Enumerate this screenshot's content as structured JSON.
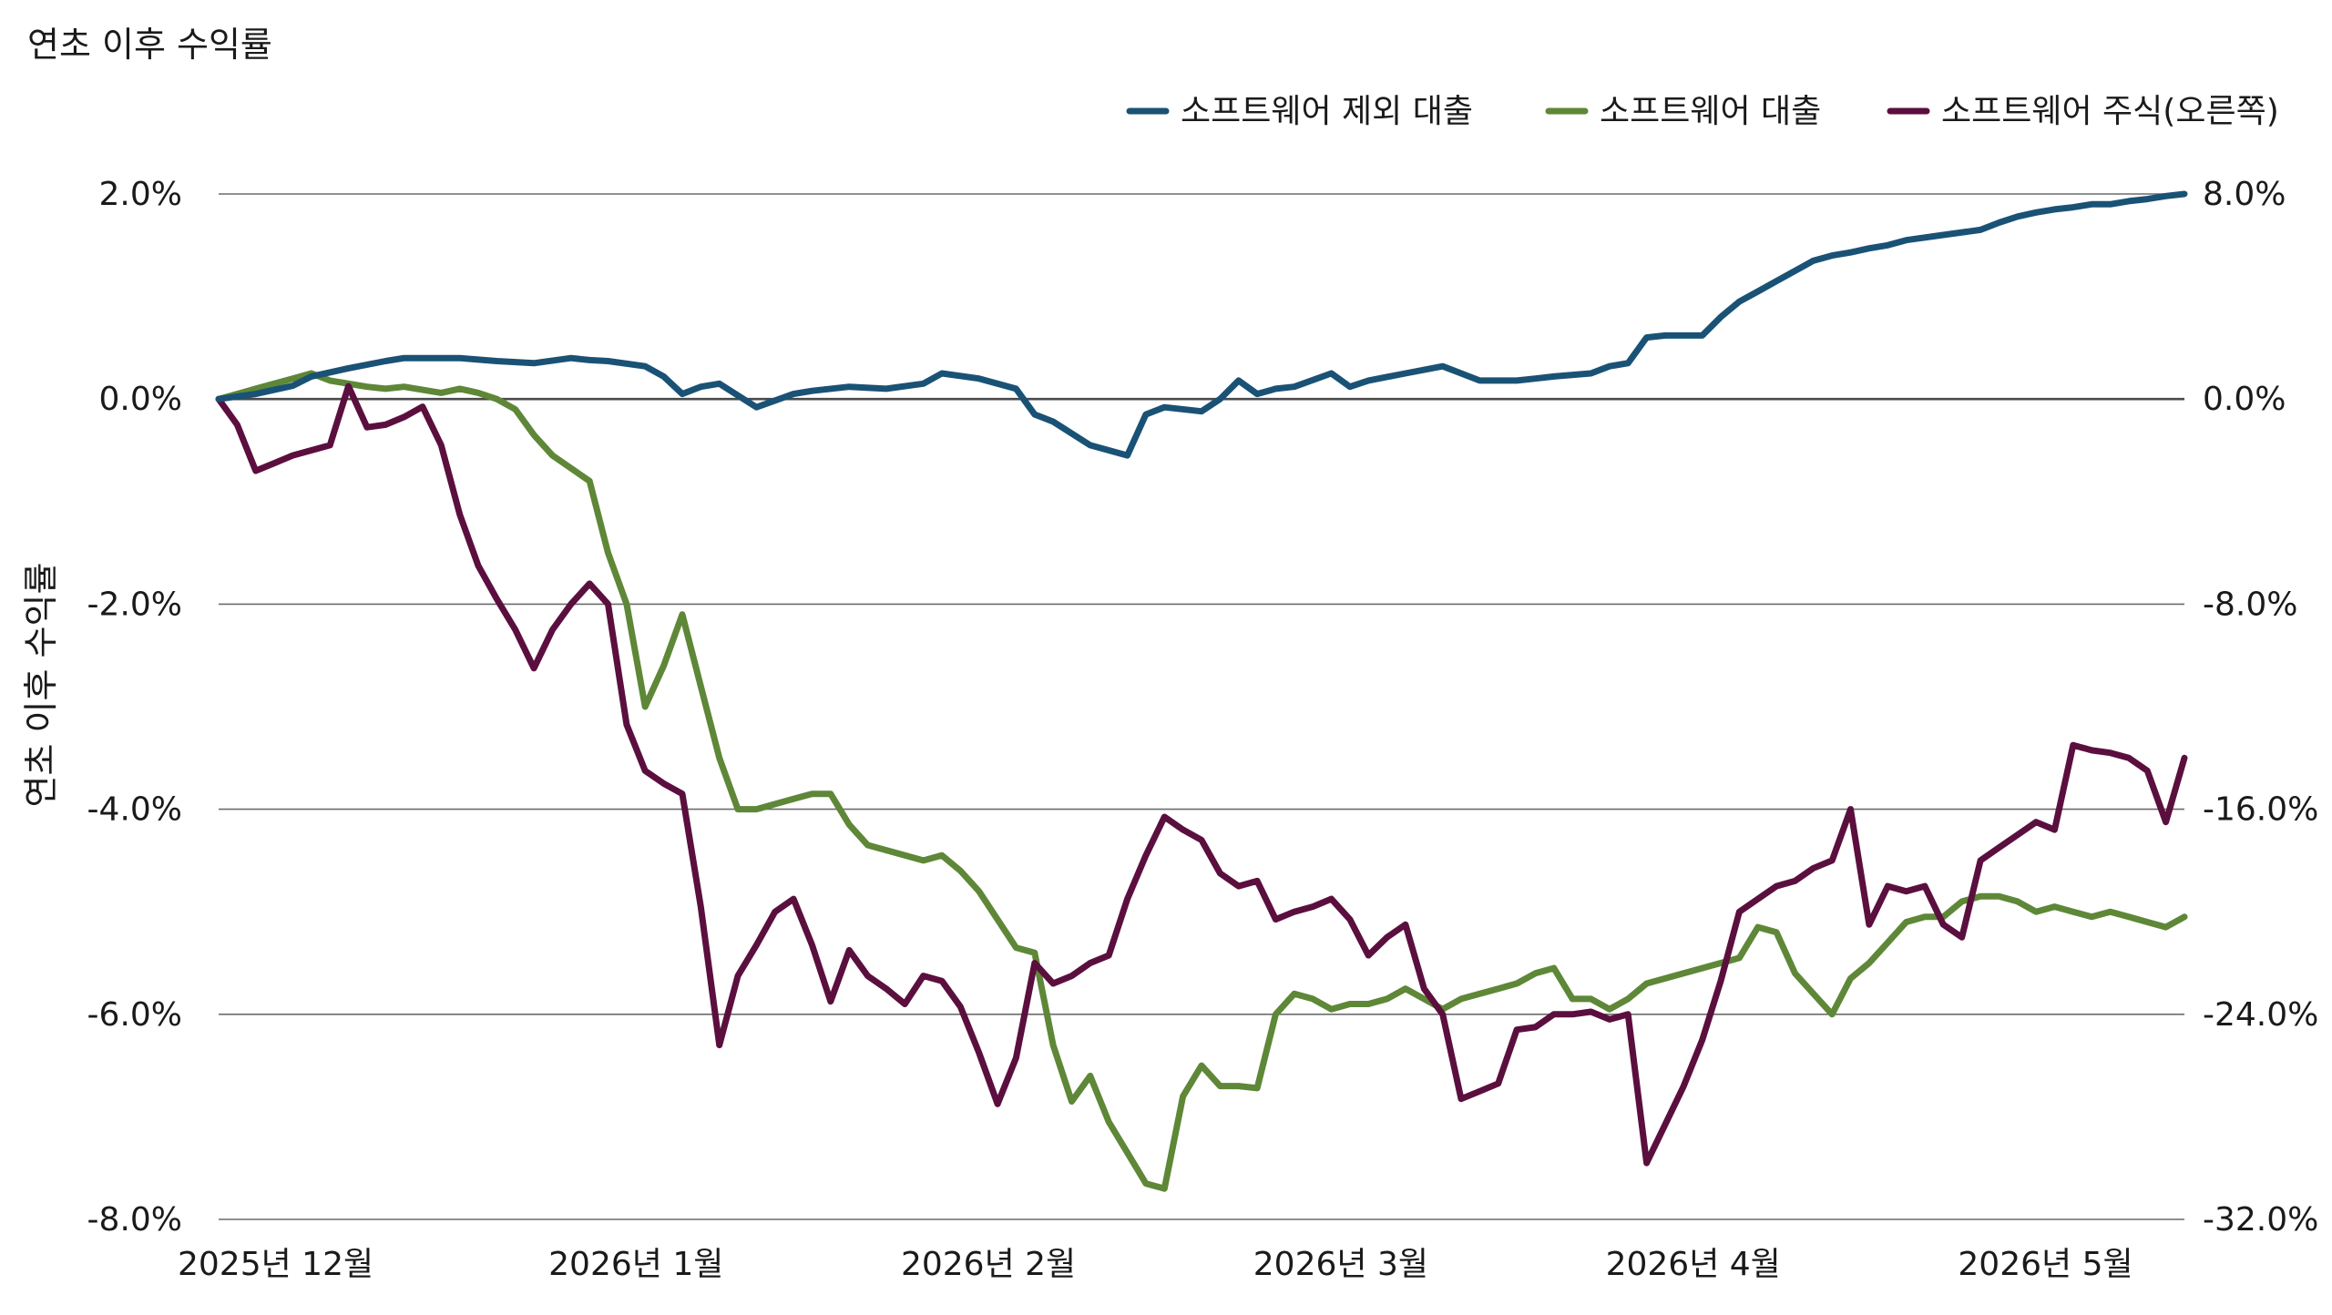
{
  "chart_data": {
    "type": "line",
    "title": "연초 이후 수익률",
    "ylabel": "연초 이후 수익률",
    "ylim": [
      -8.0,
      2.0
    ],
    "y2lim": [
      -32.0,
      8.0
    ],
    "yticks": [
      "2.0%",
      "0.0%",
      "-2.0%",
      "-4.0%",
      "-6.0%",
      "-8.0%"
    ],
    "y2ticks": [
      "8.0%",
      "0.0%",
      "-8.0%",
      "-16.0%",
      "-24.0%",
      "-32.0%"
    ],
    "x_ticks": [
      {
        "x": 0,
        "label": "2025년  12월"
      },
      {
        "x": 20,
        "label": "2026년  1월"
      },
      {
        "x": 39,
        "label": "2026년  2월"
      },
      {
        "x": 58,
        "label": "2026년  3월"
      },
      {
        "x": 77,
        "label": "2026년  4월"
      },
      {
        "x": 96,
        "label": "2026년  5월"
      }
    ],
    "grid": true,
    "legend_position": "top-right",
    "series": [
      {
        "name": "소프트웨어 제외 대출",
        "axis": "left",
        "color": "#1a5276",
        "x": [
          0,
          2,
          4,
          5,
          7,
          9,
          10,
          11,
          13,
          15,
          17,
          19,
          20,
          21,
          23,
          24,
          25,
          26,
          27,
          29,
          31,
          32,
          34,
          36,
          38,
          39,
          41,
          43,
          44,
          45,
          47,
          49,
          50,
          51,
          53,
          54,
          55,
          56,
          57,
          58,
          60,
          61,
          62,
          64,
          66,
          67,
          68,
          70,
          71,
          72,
          74,
          75,
          76,
          77,
          78,
          79,
          80,
          81,
          82,
          83,
          84,
          85,
          86,
          87,
          88,
          89,
          90,
          91,
          93,
          95,
          96,
          97,
          98,
          99,
          100,
          101,
          102,
          103,
          104,
          105,
          106
        ],
        "values": [
          0.0,
          0.05,
          0.13,
          0.22,
          0.3,
          0.37,
          0.4,
          0.4,
          0.4,
          0.37,
          0.35,
          0.4,
          0.38,
          0.37,
          0.32,
          0.22,
          0.05,
          0.12,
          0.15,
          -0.08,
          0.05,
          0.08,
          0.12,
          0.1,
          0.15,
          0.25,
          0.2,
          0.1,
          -0.15,
          -0.22,
          -0.45,
          -0.55,
          -0.15,
          -0.08,
          -0.12,
          0.0,
          0.18,
          0.05,
          0.1,
          0.12,
          0.25,
          0.12,
          0.18,
          0.25,
          0.32,
          0.25,
          0.18,
          0.18,
          0.2,
          0.22,
          0.25,
          0.32,
          0.35,
          0.6,
          0.62,
          0.62,
          0.62,
          0.8,
          0.95,
          1.05,
          1.15,
          1.25,
          1.35,
          1.4,
          1.43,
          1.47,
          1.5,
          1.55,
          1.6,
          1.65,
          1.72,
          1.78,
          1.82,
          1.85,
          1.87,
          1.9,
          1.9,
          1.93,
          1.95,
          1.98,
          2.0
        ]
      },
      {
        "name": "소프트웨어 대출",
        "axis": "left",
        "color": "#5e8737",
        "x": [
          0,
          1,
          2,
          3,
          4,
          5,
          6,
          8,
          9,
          10,
          12,
          13,
          14,
          15,
          16,
          17,
          18,
          20,
          21,
          22,
          23,
          24,
          25,
          26,
          27,
          28,
          29,
          31,
          32,
          33,
          34,
          35,
          36,
          37,
          38,
          39,
          40,
          41,
          43,
          44,
          45,
          46,
          47,
          48,
          49,
          50,
          51,
          52,
          53,
          54,
          55,
          56,
          57,
          58,
          59,
          60,
          61,
          62,
          63,
          64,
          66,
          67,
          68,
          69,
          70,
          71,
          72,
          73,
          74,
          75,
          76,
          77,
          78,
          79,
          80,
          81,
          82,
          83,
          84,
          85,
          86,
          87,
          88,
          89,
          90,
          91,
          92,
          93,
          94,
          95,
          96,
          97,
          98,
          99,
          100,
          101,
          102,
          103,
          104,
          105,
          106
        ],
        "values": [
          0.0,
          0.05,
          0.1,
          0.15,
          0.2,
          0.25,
          0.18,
          0.12,
          0.1,
          0.12,
          0.06,
          0.1,
          0.06,
          0.0,
          -0.1,
          -0.35,
          -0.55,
          -0.8,
          -1.5,
          -2.0,
          -3.0,
          -2.6,
          -2.1,
          -2.8,
          -3.5,
          -4.0,
          -4.0,
          -3.9,
          -3.85,
          -3.85,
          -4.15,
          -4.35,
          -4.4,
          -4.45,
          -4.5,
          -4.45,
          -4.6,
          -4.8,
          -5.35,
          -5.4,
          -6.3,
          -6.85,
          -6.6,
          -7.05,
          -7.35,
          -7.65,
          -7.7,
          -6.8,
          -6.5,
          -6.7,
          -6.7,
          -6.72,
          -6.0,
          -5.8,
          -5.85,
          -5.95,
          -5.9,
          -5.9,
          -5.85,
          -5.75,
          -5.95,
          -5.85,
          -5.8,
          -5.75,
          -5.7,
          -5.6,
          -5.55,
          -5.85,
          -5.85,
          -5.95,
          -5.85,
          -5.7,
          -5.65,
          -5.6,
          -5.55,
          -5.5,
          -5.45,
          -5.15,
          -5.2,
          -5.6,
          -5.8,
          -6.0,
          -5.65,
          -5.5,
          -5.3,
          -5.1,
          -5.05,
          -5.05,
          -4.9,
          -4.85,
          -4.85,
          -4.9,
          -5.0,
          -4.95,
          -5.0,
          -5.05,
          -5.0,
          -5.05,
          -5.1,
          -5.15,
          -5.05
        ]
      },
      {
        "name": "소프트웨어 주식(오른쪽)",
        "axis": "right",
        "color": "#5b0f3e",
        "x": [
          0,
          1,
          2,
          3,
          4,
          5,
          6,
          7,
          8,
          9,
          10,
          11,
          12,
          13,
          14,
          15,
          16,
          17,
          18,
          19,
          20,
          21,
          22,
          23,
          24,
          25,
          26,
          27,
          28,
          29,
          30,
          31,
          32,
          33,
          34,
          35,
          36,
          37,
          38,
          39,
          40,
          41,
          42,
          43,
          44,
          45,
          46,
          47,
          48,
          49,
          50,
          51,
          52,
          53,
          54,
          55,
          56,
          57,
          58,
          59,
          60,
          61,
          62,
          63,
          64,
          65,
          66,
          67,
          68,
          69,
          70,
          71,
          72,
          73,
          74,
          75,
          76,
          77,
          78,
          79,
          80,
          81,
          82,
          83,
          84,
          85,
          86,
          87,
          88,
          89,
          90,
          91,
          92,
          93,
          94,
          95,
          96,
          97,
          98,
          99,
          100,
          101,
          102,
          103,
          104,
          105,
          106
        ],
        "values": [
          0,
          -1,
          -2.8,
          -2.5,
          -2.2,
          -2.0,
          -1.8,
          0.5,
          -1.1,
          -1.0,
          -0.7,
          -0.3,
          -1.8,
          -4.5,
          -6.5,
          -7.8,
          -9.0,
          -10.5,
          -9.0,
          -8.0,
          -7.2,
          -8.0,
          -12.7,
          -14.5,
          -15.0,
          -15.4,
          -19.8,
          -25.2,
          -22.5,
          -21.3,
          -20.0,
          -19.5,
          -21.3,
          -23.5,
          -21.5,
          -22.5,
          -23.0,
          -23.6,
          -22.5,
          -22.7,
          -23.7,
          -25.5,
          -27.5,
          -25.7,
          -22.0,
          -22.8,
          -22.5,
          -22.0,
          -21.7,
          -19.5,
          -17.8,
          -16.3,
          -16.8,
          -17.2,
          -18.5,
          -19.0,
          -18.8,
          -20.3,
          -20.0,
          -19.8,
          -19.5,
          -20.3,
          -21.7,
          -21.0,
          -20.5,
          -23.0,
          -24.0,
          -27.3,
          -27.0,
          -26.7,
          -24.6,
          -24.5,
          -24.0,
          -24.0,
          -23.9,
          -24.2,
          -24.0,
          -29.8,
          -28.3,
          -26.8,
          -25.0,
          -22.7,
          -20.0,
          -19.5,
          -19.0,
          -18.8,
          -18.3,
          -18.0,
          -16.0,
          -20.5,
          -19.0,
          -19.2,
          -19.0,
          -20.5,
          -21.0,
          -18.0,
          -17.5,
          -17.0,
          -16.5,
          -16.8,
          -13.5,
          -13.7,
          -13.8,
          -14.0,
          -14.5,
          -16.5,
          -14.0
        ]
      }
    ]
  }
}
